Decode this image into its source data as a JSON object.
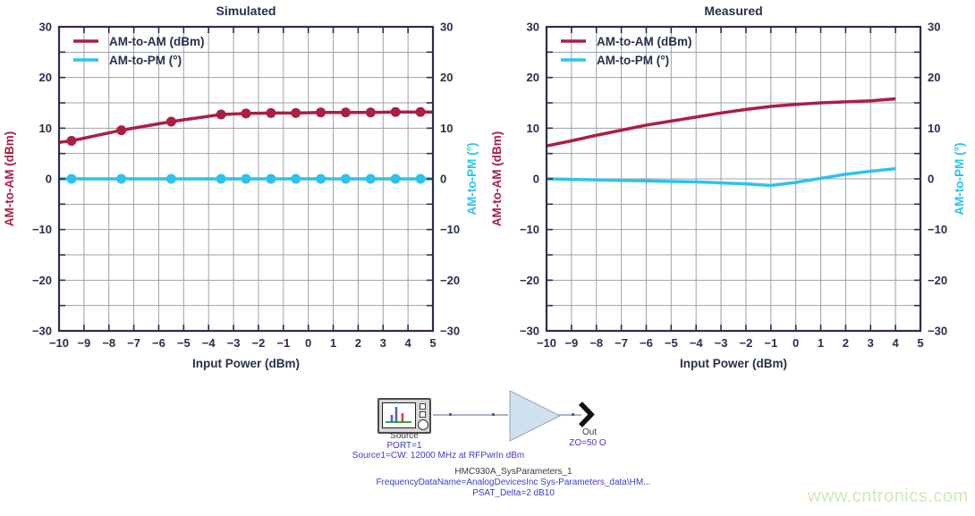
{
  "colors": {
    "am_am": "#ab1f44",
    "am_pm": "#2cc3ed",
    "axis": "#272f4b",
    "grid": "#9aa2ac",
    "schematic_blue": "#3c3ccc",
    "amp_fill": "#cfe1f1",
    "amp_stroke": "#8fa3b5",
    "watermark_green": "#cdeab9"
  },
  "chart_data": [
    {
      "type": "line",
      "title": "Simulated",
      "xlabel": "Input Power (dBm)",
      "ylabel_left": "AM-to-AM (dBm)",
      "ylabel_right": "AM-to-PM (°)",
      "xlim": [
        -10,
        5
      ],
      "ylim": [
        -30,
        30
      ],
      "xticks": [
        -10,
        -9,
        -8,
        -7,
        -6,
        -5,
        -4,
        -3,
        -2,
        -1,
        0,
        1,
        2,
        3,
        4,
        5
      ],
      "yticks_labeled": [
        30,
        20,
        10,
        0,
        -10,
        -20,
        -30
      ],
      "ytick_minor": [
        25,
        15,
        5,
        -5,
        -15,
        -25
      ],
      "grid_x": [
        -9,
        -8,
        -7,
        -6,
        -5,
        -4,
        -3,
        -2,
        -1,
        0,
        1,
        2,
        3,
        4
      ],
      "grid_y": [
        -25,
        -20,
        -15,
        -10,
        -5,
        0,
        5,
        10,
        15,
        20,
        25
      ],
      "legend": [
        {
          "label": "AM-to-AM (dBm)",
          "color_key": "am_am"
        },
        {
          "label": "AM-to-PM (°)",
          "color_key": "am_pm"
        }
      ],
      "series": [
        {
          "id": "am-to-am",
          "name": "AM-to-AM (dBm)",
          "color_key": "am_am",
          "x": [
            -10,
            -9.5,
            -7.5,
            -5.5,
            -3.5,
            -2.5,
            -1.5,
            -0.5,
            0.5,
            1.5,
            2.5,
            3.5,
            4.5,
            5
          ],
          "y": [
            7.2,
            7.5,
            9.6,
            11.3,
            12.7,
            12.9,
            13.0,
            13.0,
            13.1,
            13.1,
            13.1,
            13.2,
            13.2,
            13.2
          ],
          "marker_x": [
            -9.5,
            -7.5,
            -5.5,
            -3.5,
            -2.5,
            -1.5,
            -0.5,
            0.5,
            1.5,
            2.5,
            3.5,
            4.5
          ],
          "marker_y": [
            7.5,
            9.6,
            11.3,
            12.7,
            12.9,
            13.0,
            13.0,
            13.1,
            13.1,
            13.1,
            13.2,
            13.2
          ]
        },
        {
          "id": "am-to-pm",
          "name": "AM-to-PM (°)",
          "color_key": "am_pm",
          "x": [
            -10,
            5
          ],
          "y": [
            0,
            0
          ],
          "marker_x": [
            -9.5,
            -7.5,
            -5.5,
            -3.5,
            -2.5,
            -1.5,
            -0.5,
            0.5,
            1.5,
            2.5,
            3.5,
            4.5
          ],
          "marker_y": [
            0,
            0,
            0,
            0,
            0,
            0,
            0,
            0,
            0,
            0,
            0,
            0
          ]
        }
      ]
    },
    {
      "type": "line",
      "title": "Measured",
      "xlabel": "Input Power (dBm)",
      "ylabel_left": "AM-to-AM (dBm)",
      "ylabel_right": "AM-to-PM (°)",
      "xlim": [
        -10,
        5
      ],
      "ylim": [
        -30,
        30
      ],
      "xticks": [
        -10,
        -9,
        -8,
        -7,
        -6,
        -5,
        -4,
        -3,
        -2,
        -1,
        0,
        1,
        2,
        3,
        4,
        5
      ],
      "yticks_labeled": [
        30,
        20,
        10,
        0,
        -10,
        -20,
        -30
      ],
      "ytick_minor": [
        25,
        15,
        5,
        -5,
        -15,
        -25
      ],
      "grid_x": [
        -9,
        -8,
        -7,
        -6,
        -5,
        -4,
        -3,
        -2,
        -1,
        0,
        1,
        2,
        3,
        4
      ],
      "grid_y": [
        -25,
        -20,
        -15,
        -10,
        -5,
        0,
        5,
        10,
        15,
        20,
        25
      ],
      "legend": [
        {
          "label": "AM-to-AM (dBm)",
          "color_key": "am_am"
        },
        {
          "label": "AM-to-PM (°)",
          "color_key": "am_pm"
        }
      ],
      "series": [
        {
          "id": "am-to-am",
          "name": "AM-to-AM (dBm)",
          "color_key": "am_am",
          "x": [
            -10,
            -9,
            -8,
            -7,
            -6,
            -5,
            -4,
            -3,
            -2,
            -1,
            0,
            1,
            2,
            3,
            4
          ],
          "y": [
            6.5,
            7.5,
            8.6,
            9.6,
            10.6,
            11.4,
            12.2,
            13.0,
            13.7,
            14.3,
            14.7,
            15.0,
            15.2,
            15.4,
            15.8
          ]
        },
        {
          "id": "am-to-pm",
          "name": "AM-to-PM (°)",
          "color_key": "am_pm",
          "x": [
            -10,
            -9,
            -8,
            -7,
            -6,
            -5,
            -4,
            -3,
            -2,
            -1,
            0,
            1,
            2,
            3,
            4
          ],
          "y": [
            0,
            -0.1,
            -0.2,
            -0.3,
            -0.4,
            -0.5,
            -0.6,
            -0.8,
            -1.0,
            -1.3,
            -0.7,
            0.1,
            0.9,
            1.5,
            2.0
          ]
        }
      ]
    }
  ],
  "schematic": {
    "source_label": "Source",
    "source_port": "PORT=1",
    "source_param": "Source1=CW: 12000 MHz at RFPwrIn dBm",
    "out_label": "Out",
    "out_impedance": "ZO=50 O",
    "amp_name": "HMC930A_SysParameters_1",
    "amp_param1": "FrequencyDataName=AnalogDevicesInc Sys-Parameters_data\\HM...",
    "amp_param2": "PSAT_Delta=2 dB10"
  },
  "watermark": "www.cntronics.com"
}
